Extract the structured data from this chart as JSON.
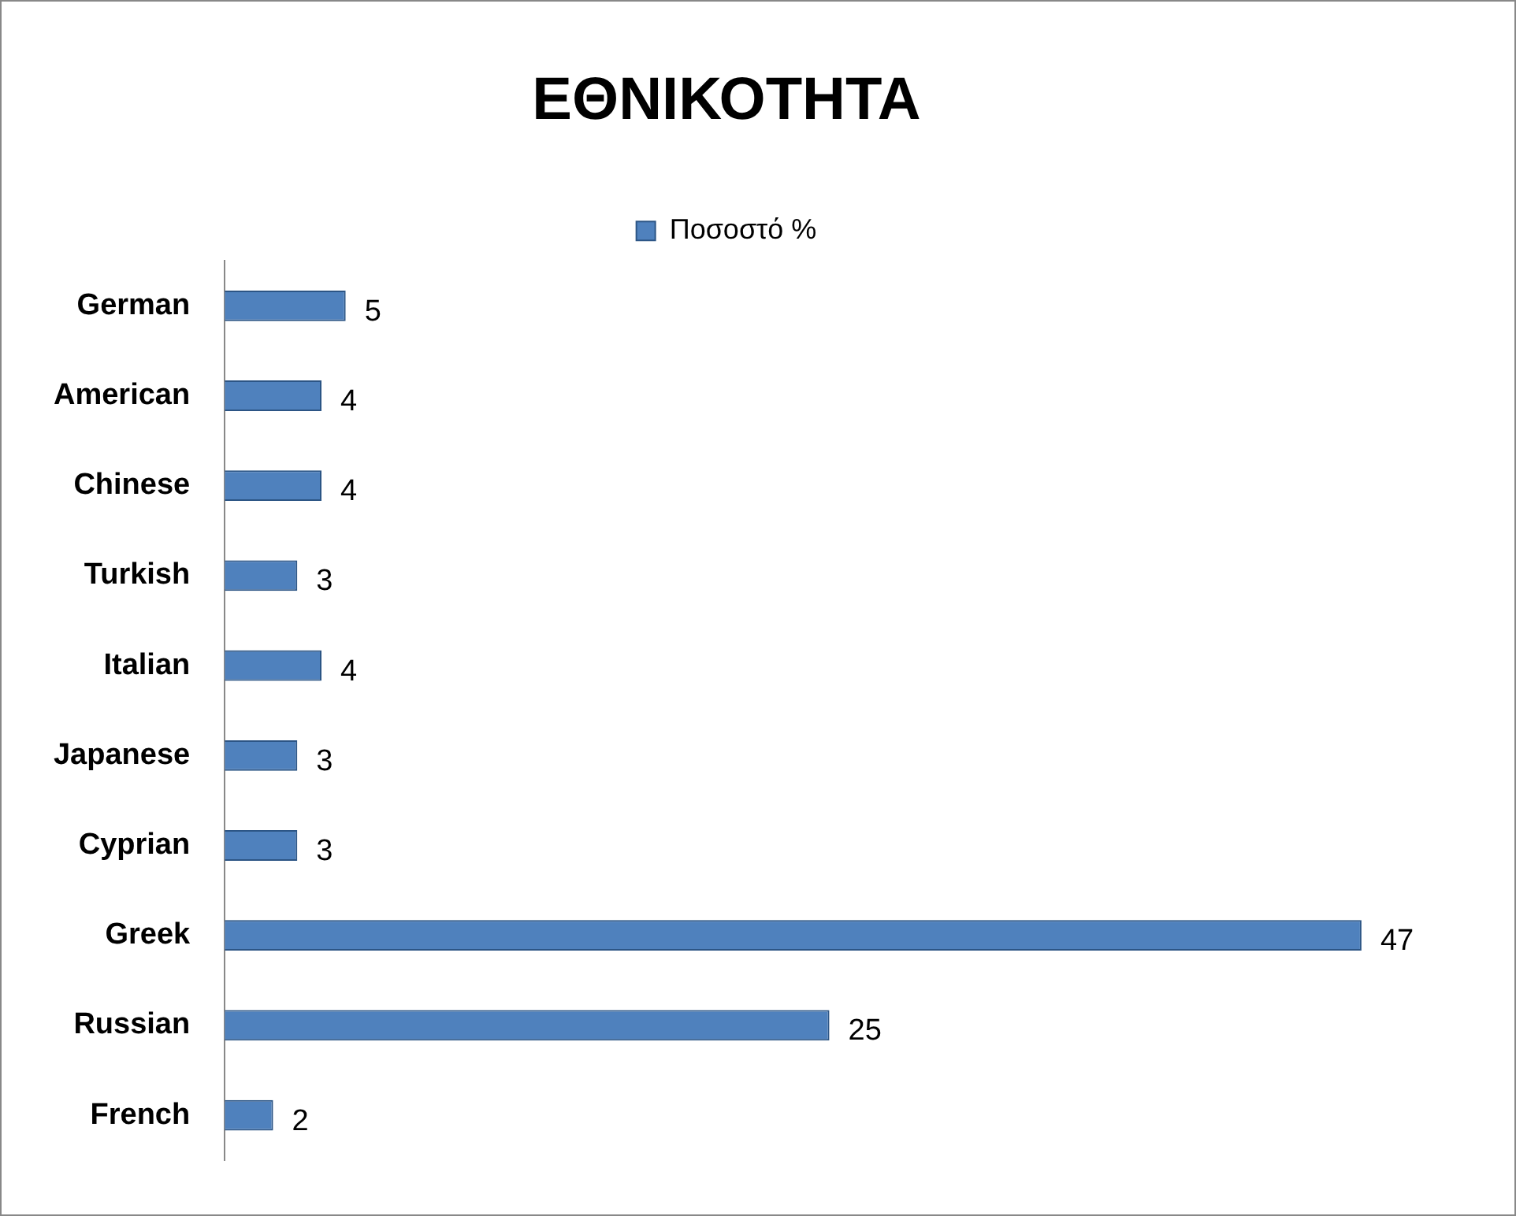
{
  "chart_data": {
    "type": "bar",
    "orientation": "horizontal",
    "title": "ΕΘΝΙΚΟΤΗΤΑ",
    "categories": [
      "German",
      "American",
      "Chinese",
      "Turkish",
      "Italian",
      "Japanese",
      "Cyprian",
      "Greek",
      "Russian",
      "French"
    ],
    "series": [
      {
        "name": "Ποσοστό %",
        "color": "#4f81bd",
        "values": [
          5,
          4,
          4,
          3,
          4,
          3,
          3,
          47,
          25,
          2
        ]
      }
    ],
    "tick_labels": "y",
    "grid": false,
    "legend": "top",
    "data_labels": true
  }
}
